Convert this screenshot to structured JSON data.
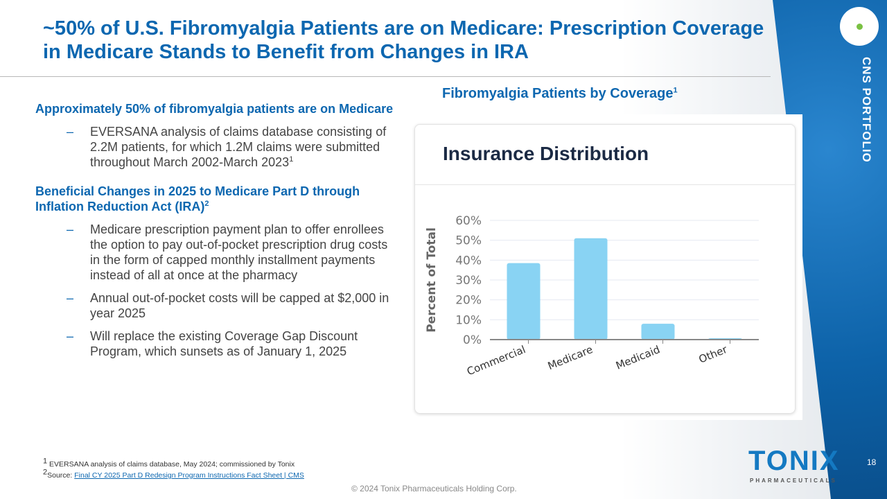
{
  "slide": {
    "title": "~50% of U.S. Fibromyalgia Patients are on Medicare: Prescription Coverage in Medicare Stands to Benefit from Changes in IRA",
    "section": "CNS PORTFOLIO",
    "section_icon": "neuron-icon",
    "heading1": "Approximately 50% of fibromyalgia patients are on Medicare",
    "bullet1": "EVERSANA analysis of claims database consisting of 2.2M patients, for which 1.2M claims were submitted throughout March 2002-March 2023",
    "bullet1_sup": "1",
    "heading2": "Beneficial Changes in 2025 to Medicare Part D through Inflation Reduction Act (IRA)",
    "heading2_sup": "2",
    "bullets2": [
      "Medicare prescription payment plan to offer enrollees the option to pay out-of-pocket prescription drug costs in the form of capped monthly installment payments instead of all at once at the pharmacy",
      "Annual out-of-pocket costs will be capped at $2,000 in year 2025",
      "Will replace the existing Coverage Gap Discount Program, which sunsets as of January 1, 2025"
    ],
    "chart_heading": "Fibromyalgia Patients by Coverage",
    "chart_heading_sup": "1",
    "footnote1_sup": "1",
    "footnote1": "EVERSANA analysis of claims database, May 2024; commissioned by Tonix",
    "footnote2_sup": "2",
    "footnote2_prefix": "Source: ",
    "footnote2_link": "Final CY 2025 Part D Redesign Program Instructions Fact Sheet | CMS",
    "copyright": "© 2024 Tonix Pharmaceuticals Holding Corp.",
    "logo": "TONIX",
    "logo_sub": "PHARMACEUTICALS",
    "page_number": "18"
  },
  "chart_data": {
    "type": "bar",
    "title": "Insurance Distribution",
    "xlabel": "",
    "ylabel": "Percent of Total",
    "categories": [
      "Commercial",
      "Medicare",
      "Medicaid",
      "Other"
    ],
    "values": [
      38.5,
      51,
      8,
      0.7
    ],
    "ylim": [
      0,
      60
    ],
    "yticks": [
      "0%",
      "10%",
      "20%",
      "30%",
      "40%",
      "50%",
      "60%"
    ],
    "grid": true,
    "bar_color": "#89d3f3"
  }
}
